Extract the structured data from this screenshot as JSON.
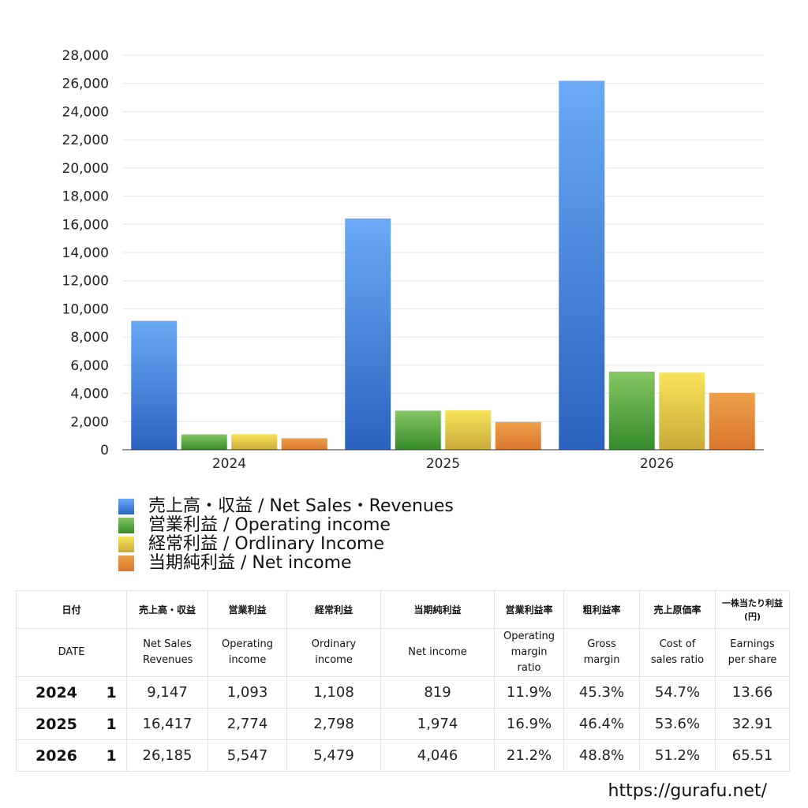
{
  "colors": {
    "revenue": "#3f7fdd",
    "operating": "#4fa53f",
    "ordinary": "#e3c93c",
    "net": "#e08a38"
  },
  "chart_data": {
    "type": "bar",
    "categories": [
      "2024",
      "2025",
      "2026"
    ],
    "series": [
      {
        "name": "売上高・収益 / Net Sales・Revenues",
        "values": [
          9147,
          16417,
          26185
        ]
      },
      {
        "name": "営業利益 / Operating income",
        "values": [
          1093,
          2774,
          5547
        ]
      },
      {
        "name": "経常利益 / Ordlinary Income",
        "values": [
          1108,
          2798,
          5479
        ]
      },
      {
        "name": "当期純利益 / Net income",
        "values": [
          819,
          1974,
          4046
        ]
      }
    ],
    "ylim": [
      0,
      28000
    ],
    "yticks": [
      "0",
      "2,000",
      "4,000",
      "6,000",
      "8,000",
      "10,000",
      "12,000",
      "14,000",
      "16,000",
      "18,000",
      "20,000",
      "22,000",
      "24,000",
      "26,000",
      "28,000"
    ],
    "grid": true,
    "legend": "bottom-left"
  },
  "table": {
    "headers_jp": [
      "日付",
      "売上高・収益",
      "営業利益",
      "経常利益",
      "当期純利益",
      "営業利益率",
      "粗利益率",
      "売上原価率",
      "一株当たり利益(円)"
    ],
    "headers_en": [
      "DATE",
      "Net Sales Revenues",
      "Operating income",
      "Ordinary income",
      "Net income",
      "Operating margin ratio",
      "Gross margin",
      "Cost of sales ratio",
      "Earnings per share"
    ],
    "rows": [
      {
        "year": "2024",
        "q": "1",
        "cells": [
          "9,147",
          "1,093",
          "1,108",
          "819",
          "11.9%",
          "45.3%",
          "54.7%",
          "13.66"
        ]
      },
      {
        "year": "2025",
        "q": "1",
        "cells": [
          "16,417",
          "2,774",
          "2,798",
          "1,974",
          "16.9%",
          "46.4%",
          "53.6%",
          "32.91"
        ]
      },
      {
        "year": "2026",
        "q": "1",
        "cells": [
          "26,185",
          "5,547",
          "5,479",
          "4,046",
          "21.2%",
          "48.8%",
          "51.2%",
          "65.51"
        ]
      }
    ]
  },
  "footer": {
    "url": "https://gurafu.net/"
  }
}
